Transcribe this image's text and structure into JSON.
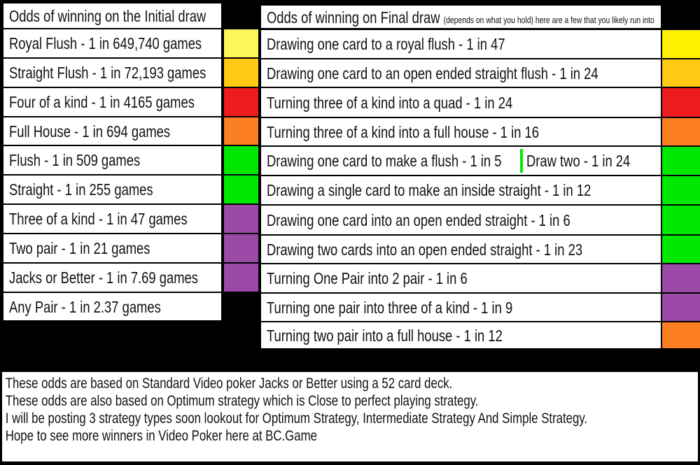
{
  "initial": {
    "title": "Odds of winning on the Initial draw",
    "rows": [
      {
        "label": "Royal Flush  -  1 in 649,740 games",
        "color": "#fdf55a"
      },
      {
        "label": "Straight Flush - 1 in 72,193 games",
        "color": "#ffc914"
      },
      {
        "label": "Four of a kind - 1 in 4165 games",
        "color": "#ee1c1c"
      },
      {
        "label": "Full House - 1 in 694 games",
        "color": "#fd7f24"
      },
      {
        "label": "Flush - 1 in 509 games",
        "color": "#00e800"
      },
      {
        "label": "Straight - 1 in 255 games",
        "color": "#00e800"
      },
      {
        "label": "Three of a kind - 1 in 47 games",
        "color": "#9b4aa8"
      },
      {
        "label": "Two pair - 1 in 21 games",
        "color": "#9b4aa8"
      },
      {
        "label": "Jacks or Better - 1 in 7.69 games",
        "color": "#9b4aa8"
      },
      {
        "label": "Any Pair - 1 in 2.37 games",
        "color": null
      }
    ]
  },
  "final": {
    "title": "Odds of winning on Final draw",
    "subtitle": "(depends on what you hold) here are a few that you likely run into",
    "rows": [
      {
        "label": "Drawing one card to a royal flush - 1 in 47",
        "color": "#fff200"
      },
      {
        "label": "Drawing one card to an open ended straight flush - 1 in 24",
        "color": "#ffc914"
      },
      {
        "label": "Turning three of a kind into a quad  - 1 in 24",
        "color": "#ee1c1c"
      },
      {
        "label": "Turning three of a kind into a full house - 1 in 16",
        "color": "#fd7f24"
      },
      {
        "label": "Drawing one card to make a flush - 1 in 5",
        "extra": "Draw two - 1 in 24",
        "color": "#00e800"
      },
      {
        "label": "Drawing a single card to make an inside straight  - 1 in 12",
        "color": "#00e800"
      },
      {
        "label": "Drawing one card into an open ended straight  - 1 in 6",
        "color": "#00e800"
      },
      {
        "label": "Drawing two cards into an open ended straight - 1 in 23",
        "color": "#00e800"
      },
      {
        "label": "Turning One Pair into 2 pair - 1 in 6",
        "color": "#9b4aa8"
      },
      {
        "label": "Turning one pair into three of a kind - 1 in 9",
        "color": "#9b4aa8"
      },
      {
        "label": "Turning two pair into a full house - 1 in 12",
        "color": "#fd7f24"
      }
    ]
  },
  "notes": [
    "These odds are based on Standard Video poker Jacks or Better using a 52 card deck.",
    "These odds are also based on Optimum strategy which is Close to perfect playing strategy.",
    "I will be posting 3 strategy types soon lookout for Optimum Strategy, Intermediate Strategy And Simple Strategy.",
    "Hope to see more winners in Video Poker here at BC.Game"
  ]
}
